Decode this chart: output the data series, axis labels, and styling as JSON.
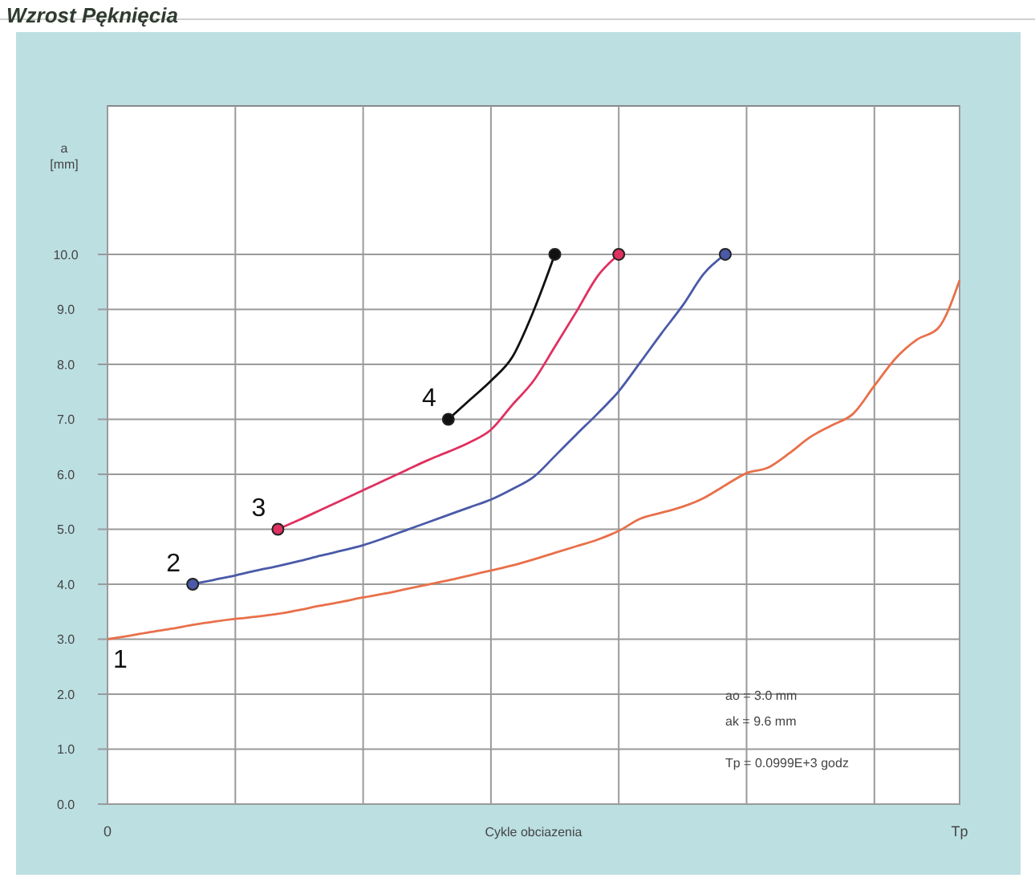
{
  "chart_data": {
    "type": "line",
    "title": "Wzrost Pęknięcia",
    "xlabel": "Cykle obciazenia",
    "ylabel": "a [mm]",
    "categories": [
      "0",
      null,
      null,
      null,
      null,
      null,
      null,
      null,
      null,
      null,
      null,
      null,
      null,
      null,
      null,
      null,
      null,
      null,
      null,
      null,
      null,
      null,
      null,
      null,
      null,
      null,
      null,
      null,
      null,
      null,
      null,
      null,
      null,
      null,
      null,
      null,
      null,
      null,
      null,
      null,
      "Tp"
    ],
    "ylim": [
      0,
      12.7
    ],
    "yticks": [
      {
        "value": 0,
        "label": "0.0"
      },
      {
        "value": 1,
        "label": "1.0"
      },
      {
        "value": 2,
        "label": "2.0"
      },
      {
        "value": 3,
        "label": "3.0"
      },
      {
        "value": 4,
        "label": "4.0"
      },
      {
        "value": 5,
        "label": "5.0"
      },
      {
        "value": 6,
        "label": "6.0"
      },
      {
        "value": 7,
        "label": "7.0"
      },
      {
        "value": 8,
        "label": "8.0"
      },
      {
        "value": 9,
        "label": "9.0"
      },
      {
        "value": 10,
        "label": "10.0"
      }
    ],
    "grid": true,
    "line_style": "solid",
    "marker": "none",
    "series": [
      {
        "name": "1",
        "color": "#e8704a",
        "values": [
          3.0,
          3.06,
          3.13,
          3.19,
          3.26,
          3.32,
          3.37,
          3.41,
          3.46,
          3.53,
          3.61,
          3.68,
          3.76,
          3.83,
          3.91,
          3.99,
          4.07,
          4.16,
          4.25,
          4.34,
          4.45,
          4.57,
          4.69,
          4.81,
          4.97,
          5.19,
          5.3,
          5.41,
          5.57,
          5.8,
          6.02,
          6.12,
          6.38,
          6.68,
          6.89,
          7.1,
          7.61,
          8.11,
          8.45,
          8.66,
          9.53
        ]
      },
      {
        "name": "2",
        "color": "#4a5aa8",
        "values": [
          null,
          null,
          null,
          null,
          4.0,
          4.08,
          4.16,
          4.25,
          4.33,
          4.42,
          4.52,
          4.61,
          4.71,
          4.84,
          4.98,
          5.12,
          5.26,
          5.4,
          5.54,
          5.73,
          5.95,
          6.33,
          6.72,
          7.1,
          7.51,
          8.03,
          8.56,
          9.07,
          9.65,
          10.0,
          null,
          null,
          null,
          null,
          null,
          null,
          null,
          null,
          null,
          null,
          null
        ]
      },
      {
        "name": "3",
        "color": "#e03060",
        "values": [
          null,
          null,
          null,
          null,
          null,
          null,
          null,
          null,
          5.0,
          5.17,
          5.35,
          5.53,
          5.71,
          5.89,
          6.07,
          6.25,
          6.41,
          6.58,
          6.81,
          7.26,
          7.7,
          8.32,
          8.95,
          9.6,
          10.0,
          null,
          null,
          null,
          null,
          null,
          null,
          null,
          null,
          null,
          null,
          null,
          null,
          null,
          null,
          null,
          null
        ]
      },
      {
        "name": "4",
        "color": "#111111",
        "values": [
          null,
          null,
          null,
          null,
          null,
          null,
          null,
          null,
          null,
          null,
          null,
          null,
          null,
          null,
          null,
          null,
          7.0,
          7.35,
          7.7,
          8.13,
          8.97,
          10.0,
          null,
          null,
          null,
          null,
          null,
          null,
          null,
          null,
          null,
          null,
          null,
          null,
          null,
          null,
          null,
          null,
          null,
          null,
          null
        ]
      },
      {
        "type": "scatter",
        "marker": "circle",
        "color": "#4a5aa8",
        "values": [
          null,
          null,
          null,
          null,
          4.0,
          null,
          null,
          null,
          null,
          null,
          null,
          null,
          null,
          null,
          null,
          null,
          null,
          null,
          null,
          null,
          null,
          null,
          null,
          null,
          null,
          null,
          null,
          null,
          null,
          10.0,
          null,
          null,
          null,
          null,
          null,
          null,
          null,
          null,
          null,
          null,
          null
        ]
      },
      {
        "type": "scatter",
        "marker": "circle",
        "color": "#e03060",
        "values": [
          null,
          null,
          null,
          null,
          null,
          null,
          null,
          null,
          5.0,
          null,
          null,
          null,
          null,
          null,
          null,
          null,
          null,
          null,
          null,
          null,
          null,
          null,
          null,
          null,
          10.0,
          null,
          null,
          null,
          null,
          null,
          null,
          null,
          null,
          null,
          null,
          null,
          null,
          null,
          null,
          null,
          null
        ]
      },
      {
        "type": "scatter",
        "marker": "circle",
        "color": "#111111",
        "values": [
          null,
          null,
          null,
          null,
          null,
          null,
          null,
          null,
          null,
          null,
          null,
          null,
          null,
          null,
          null,
          null,
          7.0,
          null,
          null,
          null,
          null,
          10.0,
          null,
          null,
          null,
          null,
          null,
          null,
          null,
          null,
          null,
          null,
          null,
          null,
          null,
          null,
          null,
          null,
          null,
          null,
          null
        ]
      }
    ],
    "annotations": [
      "ao =  3.0 mm",
      "ak =  9.6 mm",
      "Tp =  0.0999E+3 godz"
    ]
  }
}
